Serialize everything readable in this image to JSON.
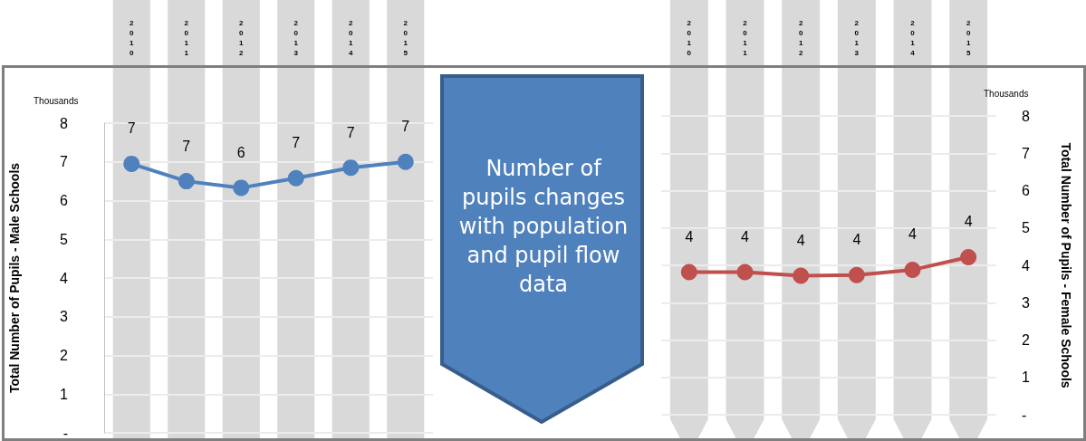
{
  "chart_data": [
    {
      "type": "line",
      "ylabel": "Total Number of Pupils - Male Schools",
      "annotations": [
        "Thousands"
      ],
      "categories": [
        "2010",
        "2011",
        "2012",
        "2013",
        "2014",
        "2015"
      ],
      "series": [
        {
          "color": "#4f81bd",
          "values": [
            6.95,
            6.5,
            6.33,
            6.58,
            6.85,
            7.0
          ],
          "value_labels": [
            "7",
            "7",
            "6",
            "7",
            "7",
            "7"
          ]
        }
      ],
      "bands": [
        {
          "axis": "x",
          "from": "2010",
          "to": "2010",
          "color": "#d9d9d9"
        },
        {
          "axis": "x",
          "from": "2011",
          "to": "2011",
          "color": "#d9d9d9"
        },
        {
          "axis": "x",
          "from": "2012",
          "to": "2012",
          "color": "#d9d9d9"
        },
        {
          "axis": "x",
          "from": "2013",
          "to": "2013",
          "color": "#d9d9d9"
        },
        {
          "axis": "x",
          "from": "2014",
          "to": "2014",
          "color": "#d9d9d9"
        },
        {
          "axis": "x",
          "from": "2015",
          "to": "2015",
          "color": "#d9d9d9"
        }
      ],
      "ylim": [
        0,
        8
      ],
      "yticks": [
        {
          "value": 0,
          "label": "-"
        },
        1,
        2,
        3,
        4,
        5,
        6,
        7,
        8
      ],
      "grid": "y",
      "marker": "circle",
      "line_style": "solid"
    },
    {
      "type": "other",
      "annotations": [
        "Number of pupils changes with population and pupil flow data"
      ]
    },
    {
      "type": "line",
      "y2label": "Total Number of Pupils - Female Schools",
      "annotations": [
        "Thousands"
      ],
      "categories": [
        "2010",
        "2011",
        "2012",
        "2013",
        "2014",
        "2015"
      ],
      "series": [
        {
          "color": "#c0504d",
          "axis": "y2",
          "values": [
            3.82,
            3.82,
            3.72,
            3.74,
            3.88,
            4.22
          ],
          "value_labels": [
            "4",
            "4",
            "4",
            "4",
            "4",
            "4"
          ]
        }
      ],
      "bands": [
        {
          "axis": "x",
          "from": "2010",
          "to": "2010",
          "color": "#d9d9d9"
        },
        {
          "axis": "x",
          "from": "2011",
          "to": "2011",
          "color": "#d9d9d9"
        },
        {
          "axis": "x",
          "from": "2012",
          "to": "2012",
          "color": "#d9d9d9"
        },
        {
          "axis": "x",
          "from": "2013",
          "to": "2013",
          "color": "#d9d9d9"
        },
        {
          "axis": "x",
          "from": "2014",
          "to": "2014",
          "color": "#d9d9d9"
        },
        {
          "axis": "x",
          "from": "2015",
          "to": "2015",
          "color": "#d9d9d9"
        }
      ],
      "y2lim": [
        0,
        8
      ],
      "y2ticks": [
        {
          "value": 0,
          "label": "-"
        },
        1,
        2,
        3,
        4,
        5,
        6,
        7,
        8
      ],
      "grid": "y",
      "marker": "circle",
      "line_style": "solid"
    }
  ]
}
